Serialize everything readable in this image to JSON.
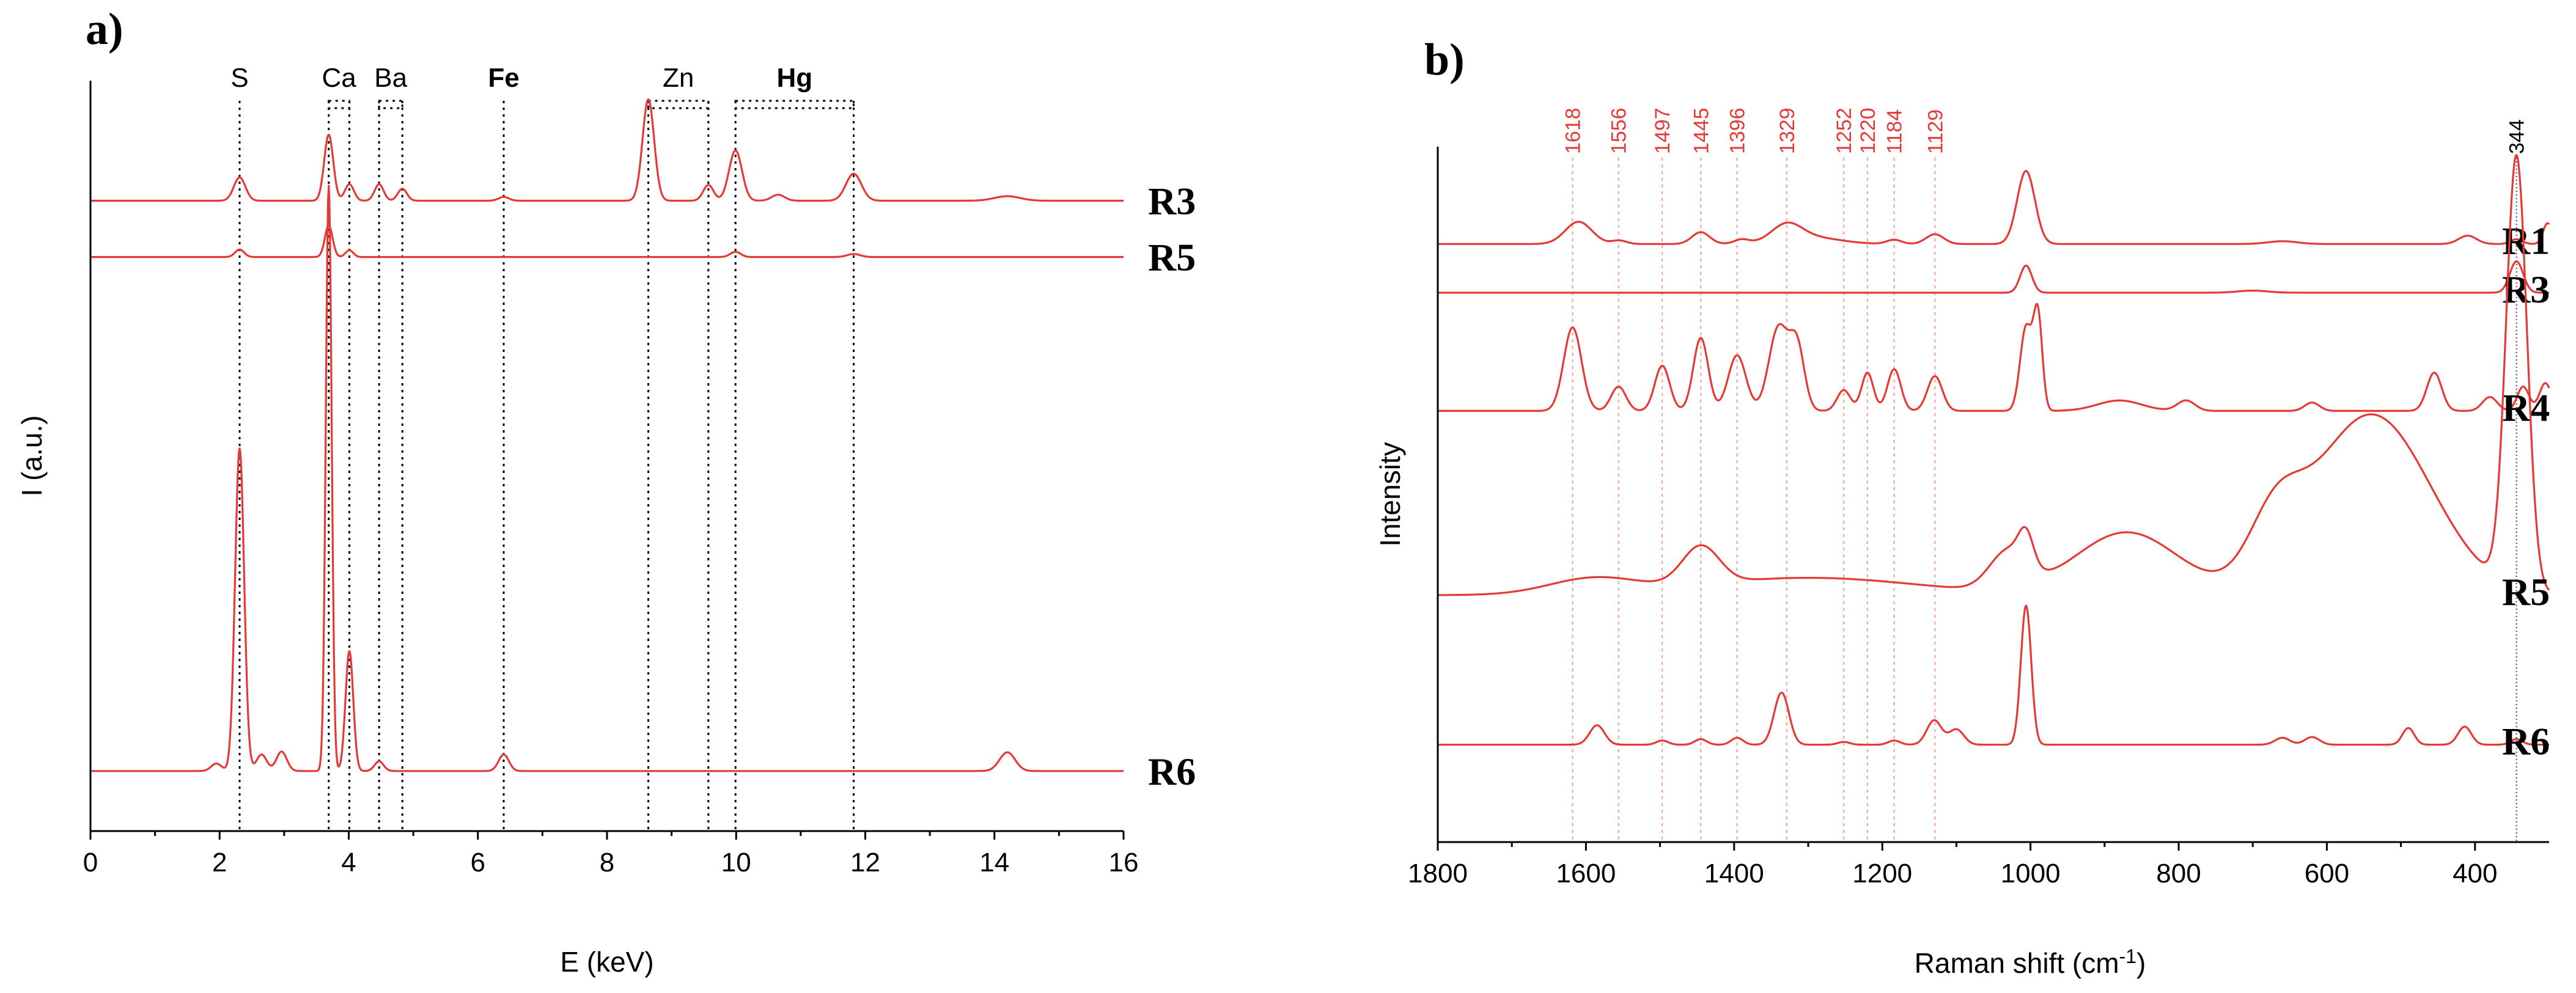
{
  "chart_data": [
    {
      "panel": "a)",
      "type": "line",
      "xlabel": "E (keV)",
      "ylabel": "I (a.u.)",
      "xlim": [
        0,
        16
      ],
      "ylim": [
        0,
        100
      ],
      "xticks": [
        "0",
        "2",
        "4",
        "6",
        "8",
        "10",
        "12",
        "14",
        "16"
      ],
      "elements": [
        {
          "label": "S",
          "bold": false,
          "e": 2.31
        },
        {
          "label": "Ca",
          "bold": false,
          "e": [
            3.69,
            4.01
          ]
        },
        {
          "label": "Ba",
          "bold": false,
          "e": [
            4.47,
            4.83
          ]
        },
        {
          "label": "Fe",
          "bold": true,
          "e": 6.4
        },
        {
          "label": "Zn",
          "bold": false,
          "e": [
            8.64,
            9.57
          ]
        },
        {
          "label": "Hg",
          "bold": true,
          "e": [
            9.99,
            11.82
          ]
        }
      ],
      "series": [
        {
          "name": "R3",
          "baseline": 84,
          "peaks": [
            [
              2.31,
              3.1,
              0.09
            ],
            [
              3.69,
              8.8,
              0.07
            ],
            [
              4.01,
              2.2,
              0.07
            ],
            [
              4.47,
              2.2,
              0.07
            ],
            [
              4.83,
              1.6,
              0.07
            ],
            [
              6.4,
              0.5,
              0.08
            ],
            [
              8.64,
              13.5,
              0.09
            ],
            [
              9.57,
              2.1,
              0.08
            ],
            [
              9.99,
              6.7,
              0.1
            ],
            [
              10.65,
              0.8,
              0.1
            ],
            [
              11.82,
              3.6,
              0.12
            ],
            [
              14.2,
              0.6,
              0.2
            ]
          ]
        },
        {
          "name": "R5",
          "baseline": 76.5,
          "peaks": [
            [
              2.31,
              1.0,
              0.07
            ],
            [
              3.69,
              4.2,
              0.06
            ],
            [
              4.01,
              0.9,
              0.06
            ],
            [
              9.99,
              0.7,
              0.08
            ],
            [
              11.82,
              0.4,
              0.1
            ]
          ]
        },
        {
          "name": "R6",
          "baseline": 8,
          "peaks": [
            [
              1.95,
              1.0,
              0.08
            ],
            [
              2.31,
              43,
              0.07
            ],
            [
              2.65,
              2.2,
              0.08
            ],
            [
              2.96,
              2.6,
              0.08
            ],
            [
              3.69,
              78,
              0.045
            ],
            [
              4.01,
              16,
              0.06
            ],
            [
              4.47,
              1.3,
              0.07
            ],
            [
              6.4,
              2.2,
              0.08
            ],
            [
              14.2,
              2.5,
              0.12
            ]
          ]
        }
      ]
    },
    {
      "panel": "b)",
      "type": "line",
      "xlabel": "Raman shift (cm",
      "xlabel_sup": "-1",
      "xlabel_end": ")",
      "ylabel": "Intensity",
      "xlim": [
        1800,
        300
      ],
      "ylim": [
        0,
        100
      ],
      "xticks": [
        "1800",
        "1600",
        "1400",
        "1200",
        "1000",
        "800",
        "600",
        "400"
      ],
      "peak_labels": [
        "1618",
        "1556",
        "1497",
        "1396",
        "1445",
        "1329",
        "1252",
        "1220",
        "1184",
        "1129"
      ],
      "peak_positions": [
        1618,
        1556,
        1497,
        1396,
        1445,
        1329,
        1252,
        1220,
        1184,
        1129
      ],
      "marker_label": "344",
      "marker_position": 344,
      "series": [
        {
          "name": "R1",
          "baseline": 86,
          "peaks": [
            [
              1610,
              3.2,
              18
            ],
            [
              1555,
              0.5,
              10
            ],
            [
              1445,
              1.7,
              12
            ],
            [
              1390,
              0.6,
              10
            ],
            [
              1329,
              2.3,
              20
            ],
            [
              1300,
              1.0,
              40
            ],
            [
              1184,
              0.6,
              10
            ],
            [
              1129,
              1.4,
              12
            ],
            [
              1006,
              10.5,
              12
            ],
            [
              660,
              0.4,
              20
            ],
            [
              410,
              1.2,
              12
            ],
            [
              344,
              0.7,
              8
            ],
            [
              302,
              3.0,
              6
            ]
          ]
        },
        {
          "name": "R3",
          "baseline": 79,
          "peaks": [
            [
              1006,
              3.9,
              8
            ],
            [
              700,
              0.3,
              20
            ],
            [
              344,
              4.5,
              9
            ]
          ]
        },
        {
          "name": "R4",
          "baseline": 62,
          "peaks": [
            [
              1618,
              12,
              12
            ],
            [
              1556,
              3.5,
              10
            ],
            [
              1497,
              6.5,
              10
            ],
            [
              1445,
              10.5,
              10
            ],
            [
              1396,
              8,
              12
            ],
            [
              1340,
              12,
              13
            ],
            [
              1315,
              9,
              10
            ],
            [
              1252,
              3,
              9
            ],
            [
              1220,
              5.5,
              8
            ],
            [
              1184,
              6,
              9
            ],
            [
              1129,
              5,
              10
            ],
            [
              1006,
              12,
              8
            ],
            [
              990,
              13.5,
              6
            ],
            [
              880,
              1.5,
              30
            ],
            [
              790,
              1.5,
              12
            ],
            [
              620,
              1.2,
              10
            ],
            [
              455,
              5.5,
              10
            ],
            [
              380,
              2,
              10
            ],
            [
              335,
              3.5,
              8
            ],
            [
              305,
              4,
              8
            ]
          ]
        },
        {
          "name": "R5",
          "baseline": 35.5,
          "peaks": [
            [
              1590,
              2.2,
              60
            ],
            [
              1445,
              5.5,
              25
            ],
            [
              1300,
              2.5,
              150
            ],
            [
              1030,
              5.5,
              25
            ],
            [
              1006,
              4.5,
              10
            ],
            [
              870,
              9,
              70
            ],
            [
              670,
              8.5,
              35
            ],
            [
              540,
              26,
              80
            ],
            [
              344,
              62,
              14
            ]
          ]
        },
        {
          "name": "R6",
          "baseline": 14,
          "peaks": [
            [
              1585,
              2.8,
              10
            ],
            [
              1497,
              0.6,
              8
            ],
            [
              1445,
              0.8,
              8
            ],
            [
              1396,
              1.0,
              8
            ],
            [
              1336,
              7.5,
              10
            ],
            [
              1252,
              0.4,
              8
            ],
            [
              1184,
              0.6,
              8
            ],
            [
              1130,
              3.5,
              10
            ],
            [
              1100,
              2.2,
              10
            ],
            [
              1006,
              20,
              7
            ],
            [
              660,
              1.0,
              10
            ],
            [
              620,
              1.1,
              10
            ],
            [
              490,
              2.4,
              8
            ],
            [
              414,
              2.6,
              9
            ],
            [
              344,
              0.8,
              8
            ]
          ]
        }
      ]
    }
  ]
}
